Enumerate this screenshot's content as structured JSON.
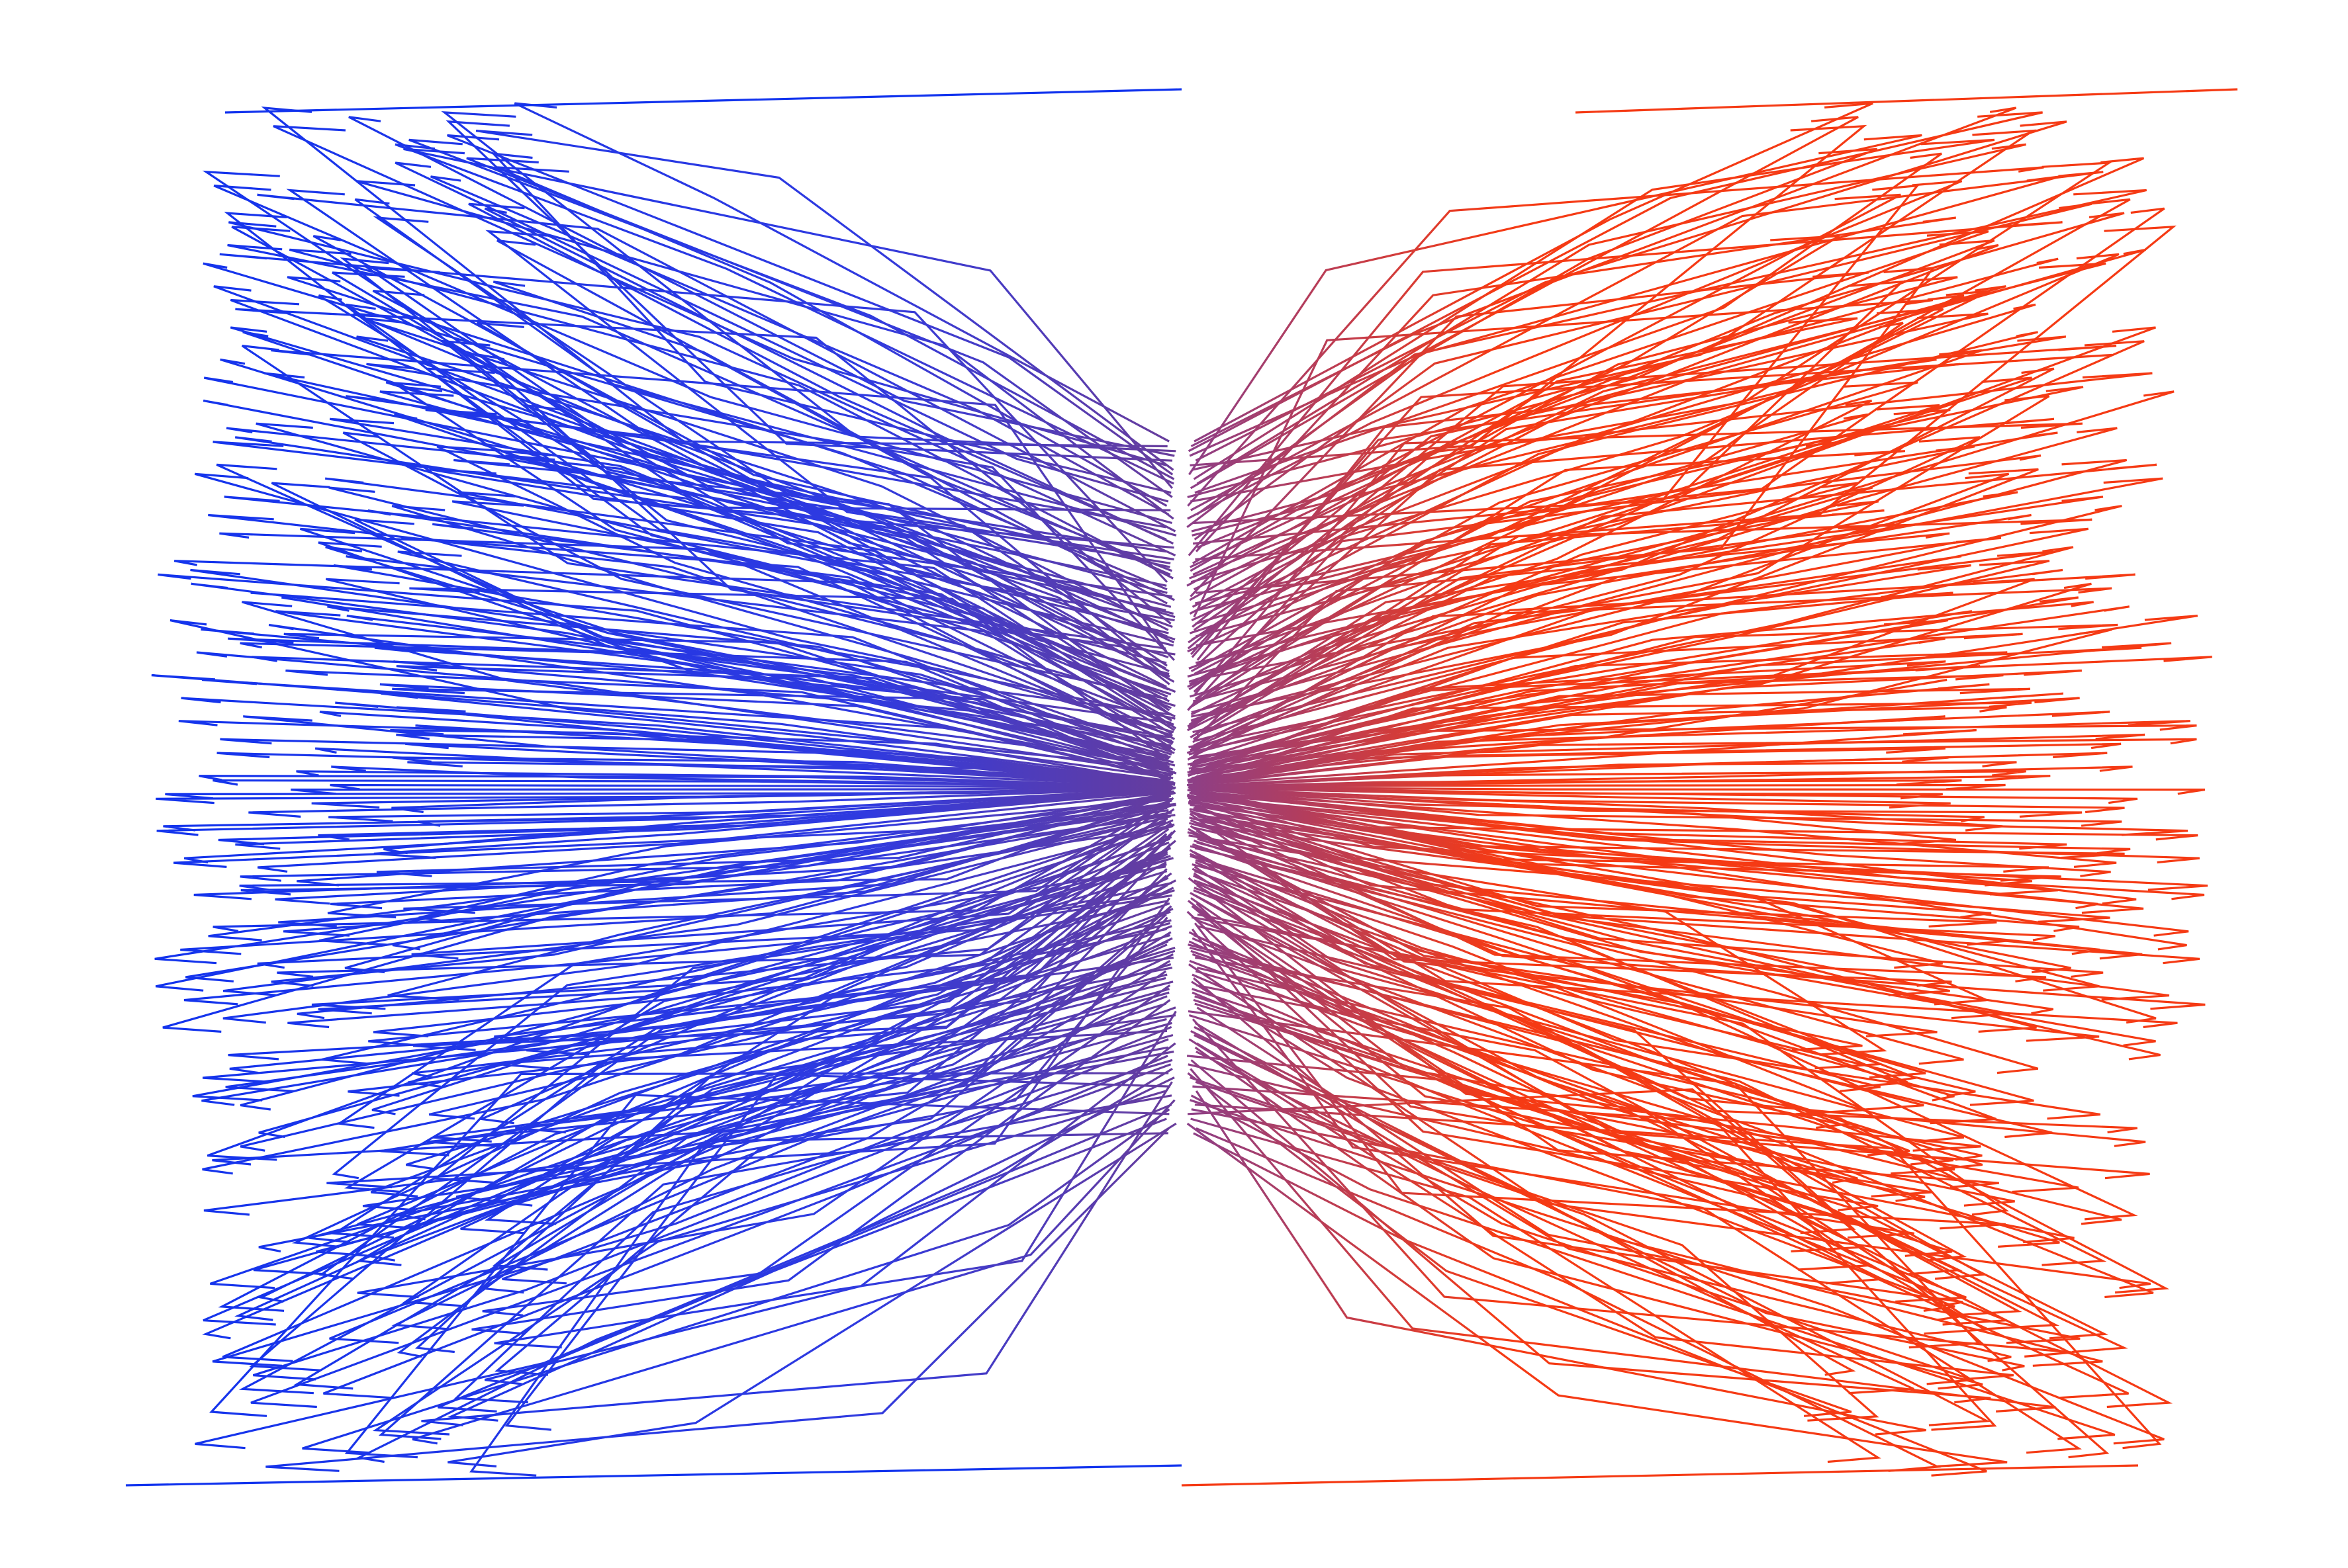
{
  "chart_data": {
    "type": "line",
    "title": "",
    "xlabel": "",
    "ylabel": "",
    "axes_visible": false,
    "grid": false,
    "legend": "none",
    "colors": {
      "left_outer": "#1133ee",
      "left_inner": "#6a3d99",
      "right_outer": "#f53a14",
      "right_inner": "#8a3f8a",
      "background": "#ffffff"
    },
    "xlim": [
      -1.0,
      1.0
    ],
    "ylim": [
      -1.0,
      1.0
    ],
    "line_count_per_side": 300,
    "center": [
      0.0,
      0.0
    ],
    "left_series_envelope": {
      "outer_x_range": [
        -0.98,
        -0.55
      ],
      "description_values": {
        "top_y": 0.98,
        "bottom_y": -0.98
      }
    },
    "right_series_envelope": {
      "outer_x_range": [
        0.55,
        0.98
      ],
      "description_values": {
        "top_y": 0.98,
        "bottom_y": -0.98
      }
    }
  }
}
